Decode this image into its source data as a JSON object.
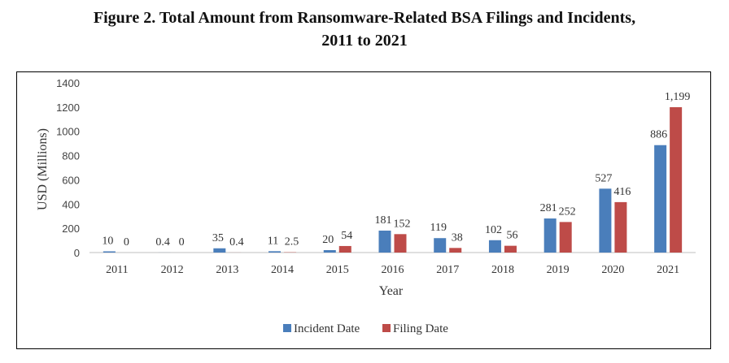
{
  "figure": {
    "title_line1": "Figure 2.  Total Amount from Ransomware-Related BSA Filings and Incidents,",
    "title_line2": "2011 to 2021"
  },
  "chart_data": {
    "type": "bar",
    "title": "Figure 2.  Total Amount from Ransomware-Related BSA Filings and Incidents, 2011 to 2021",
    "xlabel": "Year",
    "ylabel": "USD (Millions)",
    "ylim": [
      0,
      1400
    ],
    "yticks": [
      0,
      200,
      400,
      600,
      800,
      1000,
      1200,
      1400
    ],
    "grid": false,
    "legend_position": "bottom",
    "categories": [
      "2011",
      "2012",
      "2013",
      "2014",
      "2015",
      "2016",
      "2017",
      "2018",
      "2019",
      "2020",
      "2021"
    ],
    "series": [
      {
        "name": "Incident Date",
        "color": "#4a7ebb",
        "values": [
          10,
          0.4,
          35,
          11,
          20,
          181,
          119,
          102,
          281,
          527,
          886
        ],
        "labels": [
          "10",
          "0.4",
          "35",
          "11",
          "20",
          "181",
          "119",
          "102",
          "281",
          "527",
          "886"
        ]
      },
      {
        "name": "Filing Date",
        "color": "#be4b48",
        "values": [
          0,
          0,
          0.4,
          2.5,
          54,
          152,
          38,
          56,
          252,
          416,
          1199
        ],
        "labels": [
          "0",
          "0",
          "0.4",
          "2.5",
          "54",
          "152",
          "38",
          "56",
          "252",
          "416",
          "1,199"
        ]
      }
    ]
  }
}
